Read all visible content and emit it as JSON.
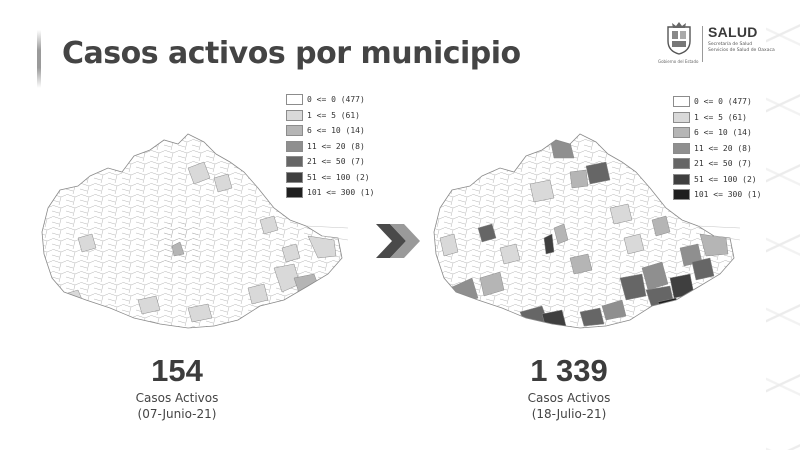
{
  "title": "Casos activos por municipio",
  "logo": {
    "brand": "SALUD",
    "subtitle_line1": "Secretaría de Salud",
    "subtitle_line2": "Servicios de Salud de Oaxaca",
    "gov_caption": "Gobierno del Estado"
  },
  "legend": {
    "items": [
      {
        "label": "0 <= 0 (477)",
        "color": "#ffffff"
      },
      {
        "label": "1 <= 5 (61)",
        "color": "#d9d9d9"
      },
      {
        "label": "6 <= 10 (14)",
        "color": "#b5b5b5"
      },
      {
        "label": "11 <= 20 (8)",
        "color": "#8f8f8f"
      },
      {
        "label": "21 <= 50 (7)",
        "color": "#666666"
      },
      {
        "label": "51 <= 100 (2)",
        "color": "#3f3f3f"
      },
      {
        "label": "101 <= 300 (1)",
        "color": "#1f1f1f"
      }
    ]
  },
  "left_panel": {
    "count": "154",
    "label": "Casos Activos",
    "date": "(07-Junio-21)"
  },
  "right_panel": {
    "count": "1 339",
    "label": "Casos Activos",
    "date": "(18-Julio-21)"
  },
  "colors": {
    "map_base": "#ffffff",
    "map_stroke": "#8a8a8a",
    "arrow_dark": "#4a4a4a",
    "arrow_light": "#9a9a9a"
  }
}
